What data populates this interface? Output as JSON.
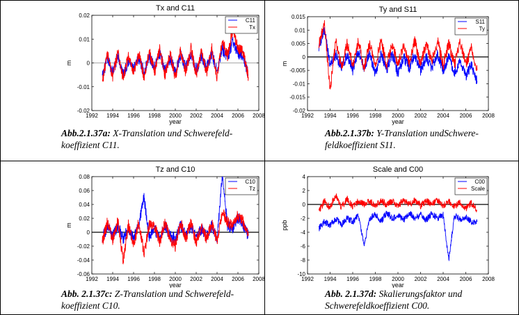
{
  "charts": [
    {
      "id": "a",
      "title": "Tx and C11",
      "xlabel": "year",
      "ylabel": "m",
      "caption_bold": "Abb.2.1.37a:",
      "caption_line1": " X-Translation und Schwerefeld-",
      "caption_line2": "koeffizient  C11."
    },
    {
      "id": "b",
      "title": "Ty and S11",
      "xlabel": "year",
      "ylabel": "m",
      "caption_bold": "Abb.2.1.37b:",
      "caption_line1": " Y-Translation undSchwere-",
      "caption_line2": "feldkoeffizient S11."
    },
    {
      "id": "c",
      "title": "Tz and C10",
      "xlabel": "year",
      "ylabel": "m",
      "caption_bold": "Abb. 2.1.37c:",
      "caption_line1": " Z-Translation und Schwerefeld-",
      "caption_line2": "koeffizient C10."
    },
    {
      "id": "d",
      "title": "Scale and C00",
      "xlabel": "year",
      "ylabel": "ppb",
      "caption_bold": "Abb. 2.1.37d:",
      "caption_line1": " Skalierungsfaktor und",
      "caption_line2": "Schwerefeldkoeffizient  C00."
    }
  ],
  "chart_data": [
    {
      "type": "line",
      "title": "Tx and C11",
      "xlabel": "year",
      "ylabel": "m",
      "xlim": [
        1992,
        2008
      ],
      "ylim": [
        -0.02,
        0.02
      ],
      "xticks": [
        "1992",
        "1994",
        "1996",
        "1998",
        "2000",
        "2002",
        "2004",
        "2006",
        "2008"
      ],
      "yticks": [
        "-0.02",
        "-0.01",
        "0",
        "0.01",
        "0.02"
      ],
      "grid": false,
      "legend_position": "top-right",
      "series": [
        {
          "name": "C11",
          "color": "#0000ff",
          "x": [
            1993,
            1993.5,
            1994,
            1994.5,
            1995,
            1995.5,
            1996,
            1996.5,
            1997,
            1997.5,
            1998,
            1998.5,
            1999,
            1999.5,
            2000,
            2000.5,
            2001,
            2001.5,
            2002,
            2002.5,
            2003,
            2003.5,
            2004,
            2004.5,
            2005,
            2005.5,
            2006,
            2006.5,
            2007
          ],
          "y": [
            -0.006,
            0.002,
            -0.004,
            0.003,
            -0.005,
            0.001,
            -0.003,
            0.002,
            -0.004,
            0.003,
            -0.002,
            0.004,
            -0.003,
            0.002,
            -0.004,
            0.003,
            -0.002,
            0.004,
            -0.003,
            0.003,
            -0.002,
            0.004,
            -0.004,
            0.006,
            0.002,
            0.009,
            0.004,
            0.003,
            -0.005
          ]
        },
        {
          "name": "Tx",
          "color": "#ff0000",
          "x": [
            1993,
            1993.5,
            1994,
            1994.5,
            1995,
            1995.5,
            1996,
            1996.5,
            1997,
            1997.5,
            1998,
            1998.5,
            1999,
            1999.5,
            2000,
            2000.5,
            2001,
            2001.5,
            2002,
            2002.5,
            2003,
            2003.5,
            2004,
            2004.5,
            2005,
            2005.5,
            2006,
            2006.5,
            2007
          ],
          "y": [
            -0.008,
            0.004,
            -0.006,
            0.005,
            -0.007,
            0.003,
            -0.005,
            0.004,
            -0.006,
            0.005,
            -0.004,
            0.006,
            -0.005,
            0.004,
            -0.006,
            0.005,
            -0.004,
            0.006,
            -0.005,
            0.005,
            -0.004,
            0.006,
            -0.006,
            0.009,
            0.003,
            0.014,
            0.006,
            0.005,
            -0.006
          ]
        }
      ]
    },
    {
      "type": "line",
      "title": "Ty and S11",
      "xlabel": "year",
      "ylabel": "m",
      "xlim": [
        1992,
        2008
      ],
      "ylim": [
        -0.02,
        0.015
      ],
      "xticks": [
        "1992",
        "1994",
        "1996",
        "1998",
        "2000",
        "2002",
        "2004",
        "2006",
        "2008"
      ],
      "yticks": [
        "-0.02",
        "-0.015",
        "-0.01",
        "-0.005",
        "0",
        "0.005",
        "0.01",
        "0.015"
      ],
      "grid": false,
      "legend_position": "top-right",
      "series": [
        {
          "name": "S11",
          "color": "#0000ff",
          "x": [
            1993,
            1993.5,
            1994,
            1994.5,
            1995,
            1995.5,
            1996,
            1996.5,
            1997,
            1997.5,
            1998,
            1998.5,
            1999,
            1999.5,
            2000,
            2000.5,
            2001,
            2001.5,
            2002,
            2002.5,
            2003,
            2003.5,
            2004,
            2004.5,
            2005,
            2005.5,
            2006,
            2006.5,
            2007
          ],
          "y": [
            0.004,
            0.01,
            -0.003,
            0.001,
            -0.004,
            0.001,
            -0.005,
            0.002,
            -0.004,
            0.001,
            -0.006,
            0.001,
            -0.005,
            0.001,
            -0.006,
            0.0,
            -0.004,
            0.001,
            -0.005,
            0.0,
            -0.004,
            0.001,
            -0.005,
            0.0,
            -0.006,
            -0.001,
            -0.007,
            -0.003,
            -0.009
          ]
        },
        {
          "name": "Ty",
          "color": "#ff0000",
          "x": [
            1993,
            1993.5,
            1994,
            1994.5,
            1995,
            1995.5,
            1996,
            1996.5,
            1997,
            1997.5,
            1998,
            1998.5,
            1999,
            1999.5,
            2000,
            2000.5,
            2001,
            2001.5,
            2002,
            2002.5,
            2003,
            2003.5,
            2004,
            2004.5,
            2005,
            2005.5,
            2006,
            2006.5,
            2007
          ],
          "y": [
            0.005,
            0.012,
            -0.012,
            0.006,
            -0.004,
            0.005,
            -0.003,
            0.006,
            -0.004,
            0.005,
            -0.003,
            0.006,
            -0.003,
            0.005,
            -0.003,
            0.005,
            -0.002,
            0.006,
            -0.003,
            0.005,
            -0.002,
            0.006,
            -0.003,
            0.005,
            -0.003,
            0.006,
            -0.003,
            0.003,
            -0.005
          ]
        }
      ]
    },
    {
      "type": "line",
      "title": "Tz and C10",
      "xlabel": "year",
      "ylabel": "m",
      "xlim": [
        1992,
        2008
      ],
      "ylim": [
        -0.06,
        0.08
      ],
      "xticks": [
        "1992",
        "1994",
        "1996",
        "1998",
        "2000",
        "2002",
        "2004",
        "2006",
        "2008"
      ],
      "yticks": [
        "-0.06",
        "-0.04",
        "-0.02",
        "0",
        "0.02",
        "0.04",
        "0.06",
        "0.08"
      ],
      "grid": false,
      "legend_position": "top-right",
      "series": [
        {
          "name": "C10",
          "color": "#0000ff",
          "x": [
            1993,
            1993.5,
            1994,
            1994.5,
            1995,
            1995.5,
            1996,
            1996.5,
            1997,
            1997.5,
            1998,
            1998.5,
            1999,
            1999.5,
            2000,
            2000.5,
            2001,
            2001.5,
            2002,
            2002.5,
            2003,
            2003.5,
            2004,
            2004.5,
            2005,
            2005.5,
            2006,
            2006.5,
            2007
          ],
          "y": [
            -0.01,
            0.01,
            -0.005,
            0.01,
            -0.01,
            0.005,
            -0.01,
            0.01,
            0.05,
            -0.005,
            0.005,
            -0.01,
            0.01,
            -0.005,
            -0.01,
            0.01,
            -0.005,
            0.01,
            -0.01,
            0.005,
            -0.005,
            0.01,
            -0.01,
            0.08,
            0.01,
            0.005,
            0.02,
            0.01,
            -0.005
          ]
        },
        {
          "name": "Tz",
          "color": "#ff0000",
          "x": [
            1993,
            1993.5,
            1994,
            1994.5,
            1995,
            1995.5,
            1996,
            1996.5,
            1997,
            1997.5,
            1998,
            1998.5,
            1999,
            1999.5,
            2000,
            2000.5,
            2001,
            2001.5,
            2002,
            2002.5,
            2003,
            2003.5,
            2004,
            2004.5,
            2005,
            2005.5,
            2006,
            2006.5,
            2007
          ],
          "y": [
            -0.015,
            0.015,
            -0.01,
            0.015,
            -0.04,
            0.01,
            -0.02,
            0.015,
            -0.03,
            0.01,
            0.01,
            -0.015,
            0.015,
            -0.01,
            -0.02,
            0.015,
            -0.01,
            0.015,
            -0.015,
            0.01,
            -0.01,
            0.015,
            -0.015,
            0.03,
            0.015,
            0.01,
            0.025,
            0.015,
            -0.005
          ]
        }
      ]
    },
    {
      "type": "line",
      "title": "Scale and C00",
      "xlabel": "year",
      "ylabel": "ppb",
      "xlim": [
        1992,
        2008
      ],
      "ylim": [
        -10,
        4
      ],
      "xticks": [
        "1992",
        "1994",
        "1996",
        "1998",
        "2000",
        "2002",
        "2004",
        "2006",
        "2008"
      ],
      "yticks": [
        "-10",
        "-8",
        "-6",
        "-4",
        "-2",
        "0",
        "2",
        "4"
      ],
      "grid": false,
      "legend_position": "top-right",
      "series": [
        {
          "name": "C00",
          "color": "#0000ff",
          "x": [
            1993,
            1993.5,
            1994,
            1994.5,
            1995,
            1995.5,
            1996,
            1996.5,
            1997,
            1997.5,
            1998,
            1998.5,
            1999,
            1999.5,
            2000,
            2000.5,
            2001,
            2001.5,
            2002,
            2002.5,
            2003,
            2003.5,
            2004,
            2004.5,
            2005,
            2005.5,
            2006,
            2006.5,
            2007
          ],
          "y": [
            -3.5,
            -2.5,
            -3,
            -2,
            -3,
            -2,
            -2.5,
            -1.5,
            -6,
            -2,
            -1.5,
            -2.5,
            -1.2,
            -2,
            -1.5,
            -2.2,
            -1.2,
            -2,
            -1.5,
            -2.2,
            -1.3,
            -2,
            -1.5,
            -8,
            -1.5,
            -2.2,
            -1.8,
            -2.5,
            -2.5
          ]
        },
        {
          "name": "Scale",
          "color": "#ff0000",
          "x": [
            1993,
            1993.5,
            1994,
            1994.5,
            1995,
            1995.5,
            1996,
            1996.5,
            1997,
            1997.5,
            1998,
            1998.5,
            1999,
            1999.5,
            2000,
            2000.5,
            2001,
            2001.5,
            2002,
            2002.5,
            2003,
            2003.5,
            2004,
            2004.5,
            2005,
            2005.5,
            2006,
            2006.5,
            2007
          ],
          "y": [
            -1,
            0.5,
            -0.5,
            1.5,
            -0.5,
            0.8,
            -0.3,
            0.5,
            0,
            0.5,
            -0.2,
            0.6,
            0,
            0.5,
            -0.2,
            0.6,
            0,
            0.6,
            -0.2,
            0.5,
            0,
            0.6,
            -0.2,
            0.5,
            -0.3,
            0.3,
            -0.5,
            0.2,
            -0.8
          ]
        }
      ]
    }
  ]
}
